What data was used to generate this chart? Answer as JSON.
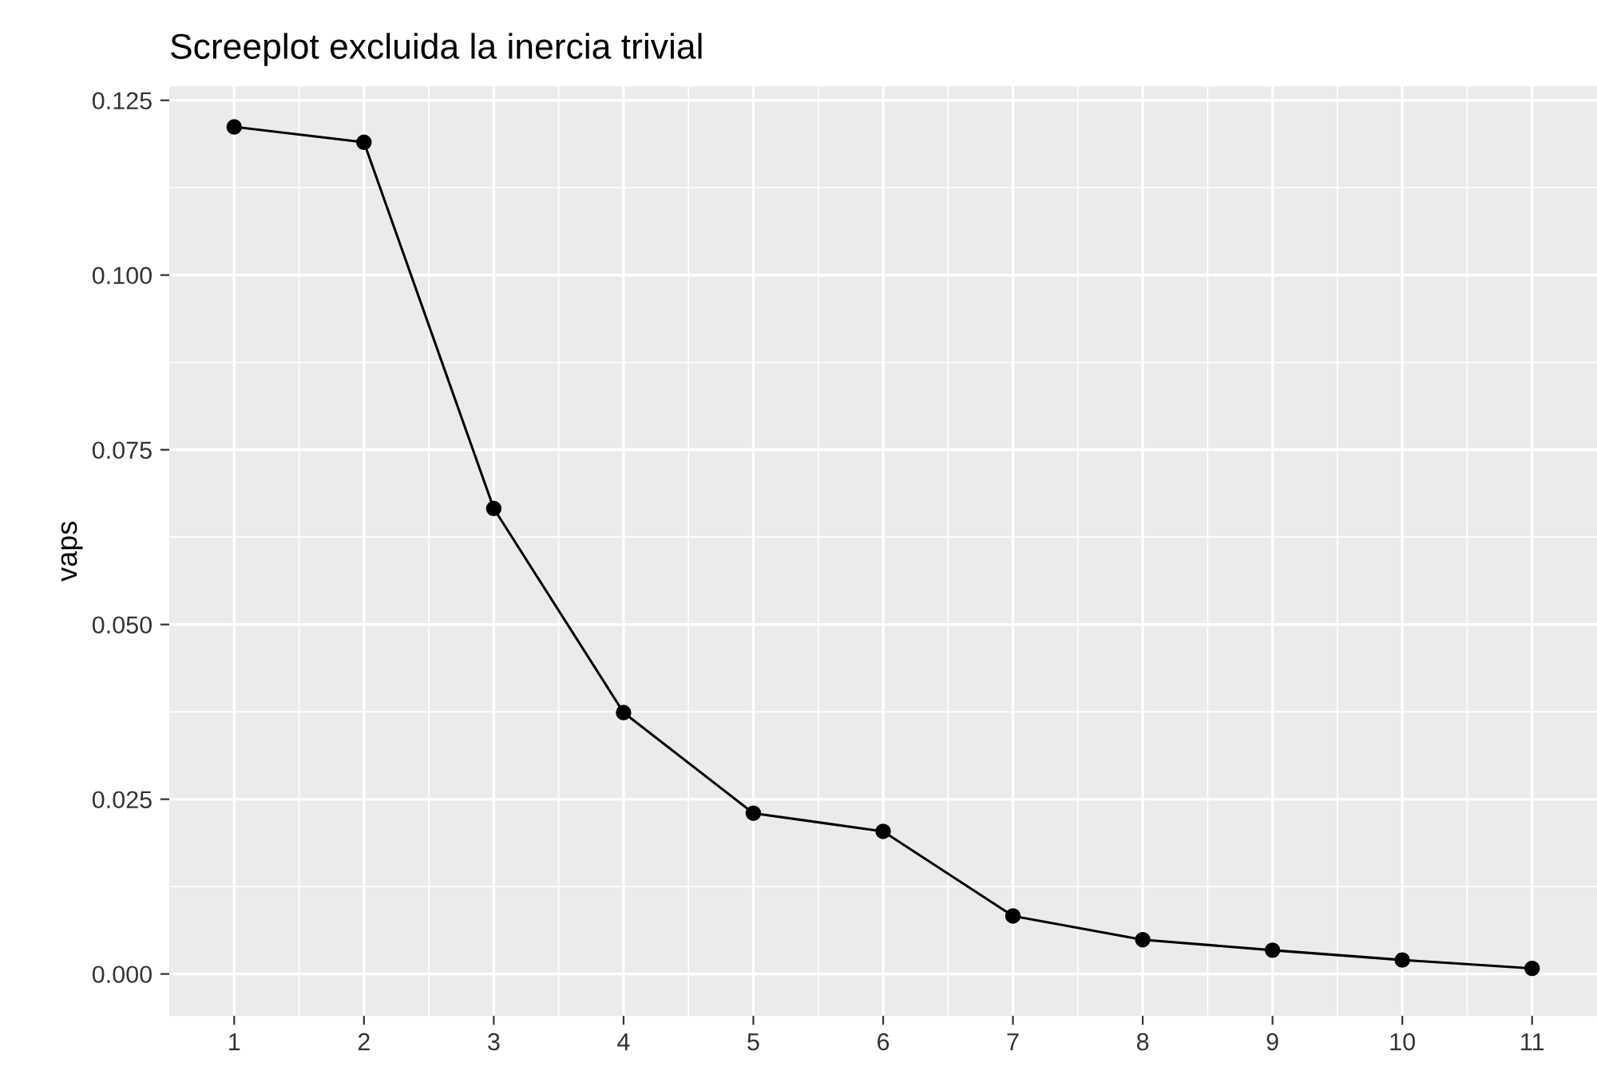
{
  "chart_data": {
    "type": "line",
    "title": "Screeplot excluida la inercia trivial",
    "ylabel": "vaps",
    "x": [
      1,
      2,
      3,
      4,
      5,
      6,
      7,
      8,
      9,
      10,
      11
    ],
    "series": [
      {
        "color": "#000000",
        "values": [
          0.1212,
          0.119,
          0.0666,
          0.0374,
          0.023,
          0.0204,
          0.0083,
          0.0049,
          0.0034,
          0.002,
          0.0008
        ]
      }
    ],
    "xlim": [
      0.5,
      11.5
    ],
    "xticks": [
      1,
      2,
      3,
      4,
      5,
      6,
      7,
      8,
      9,
      10,
      11
    ],
    "ylim": [
      -0.006,
      0.127
    ],
    "yticks": [
      {
        "value": 0,
        "label": "0.000"
      },
      {
        "value": 0.025,
        "label": "0.025"
      },
      {
        "value": 0.05,
        "label": "0.050"
      },
      {
        "value": 0.075,
        "label": "0.075"
      },
      {
        "value": 0.1,
        "label": "0.100"
      },
      {
        "value": 0.125,
        "label": "0.125"
      }
    ],
    "grid": true,
    "marker": "circle",
    "line_style": "solid"
  }
}
